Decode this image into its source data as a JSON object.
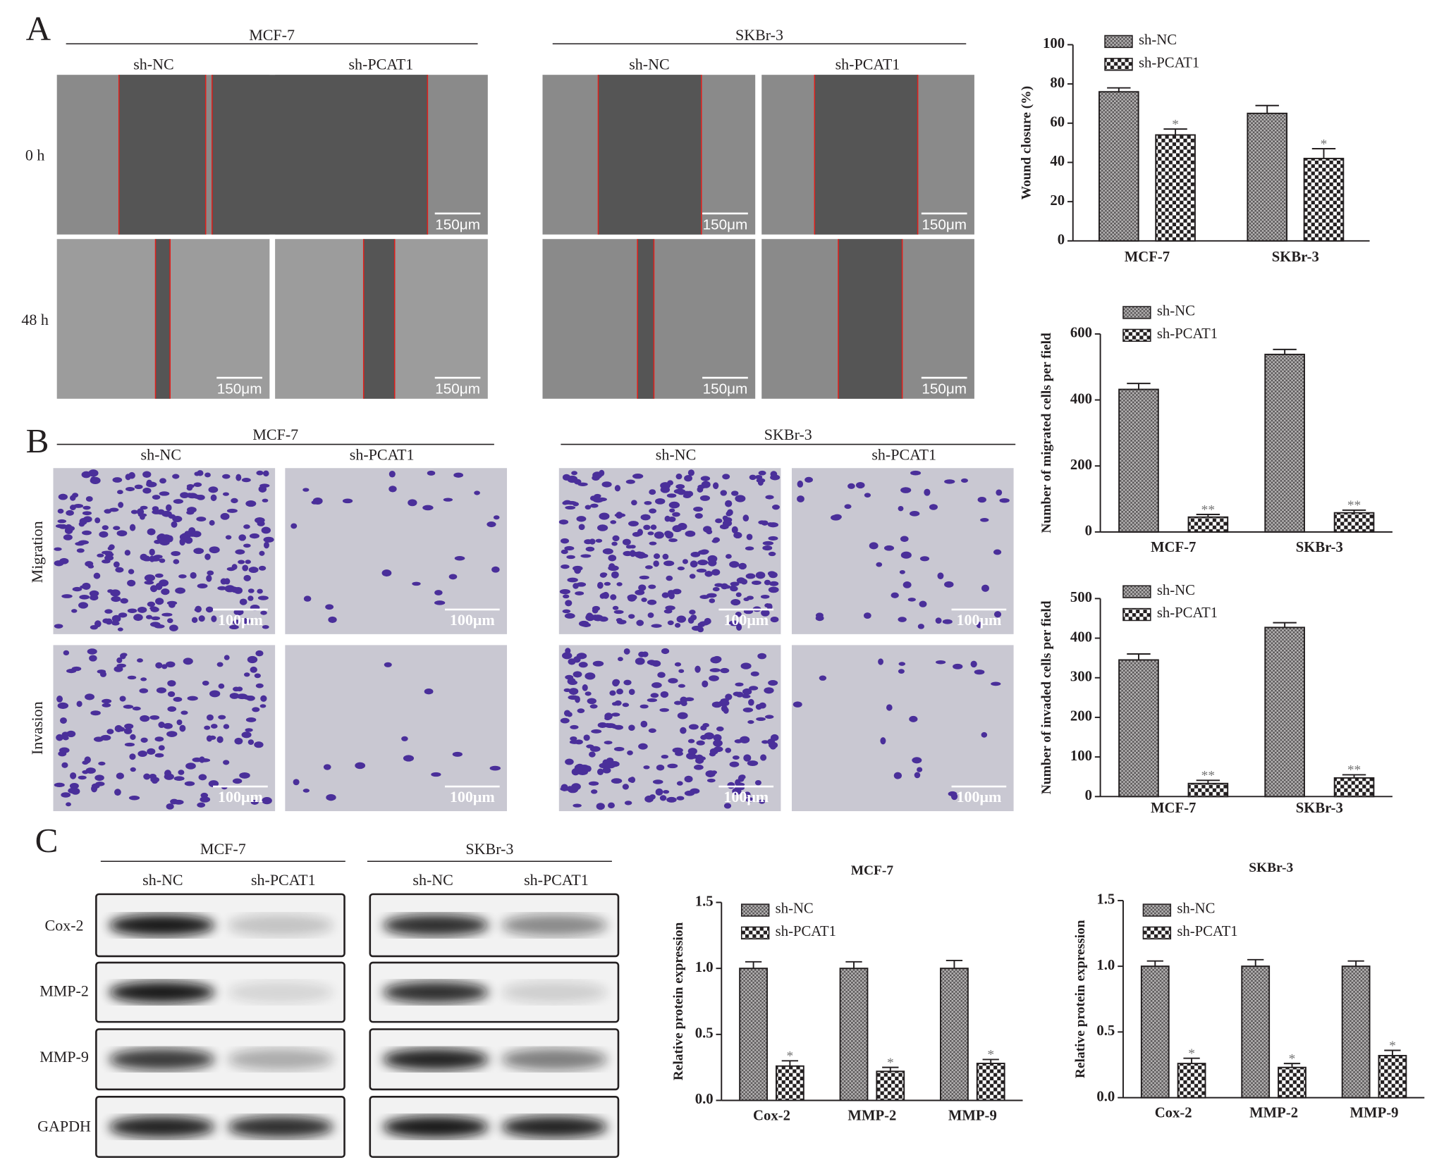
{
  "panel_labels": [
    "A",
    "B",
    "C"
  ],
  "panel_a": {
    "groups": [
      {
        "title": "MCF-7",
        "columns": [
          "sh-NC",
          "sh-PCAT1"
        ]
      },
      {
        "title": "SKBr-3",
        "columns": [
          "sh-NC",
          "sh-PCAT1"
        ]
      }
    ],
    "rows": [
      "0 h",
      "48 h"
    ],
    "scale_bar": "150μm"
  },
  "panel_b": {
    "groups": [
      {
        "title": "MCF-7",
        "columns": [
          "sh-NC",
          "sh-PCAT1"
        ]
      },
      {
        "title": "SKBr-3",
        "columns": [
          "sh-NC",
          "sh-PCAT1"
        ]
      }
    ],
    "rows": [
      "Migration",
      "Invasion"
    ],
    "scale_bar": "100μm"
  },
  "panel_c": {
    "groups": [
      {
        "title": "MCF-7",
        "columns": [
          "sh-NC",
          "sh-PCAT1"
        ]
      },
      {
        "title": "SKBr-3",
        "columns": [
          "sh-NC",
          "sh-PCAT1"
        ]
      }
    ],
    "rows": [
      "Cox-2",
      "MMP-2",
      "MMP-9",
      "GAPDH"
    ]
  },
  "chart_data": [
    {
      "type": "bar",
      "y_label": "Wound closure (%)",
      "categories": [
        "MCF-7",
        "SKBr-3"
      ],
      "series": [
        {
          "name": "sh-NC",
          "color": "#231f20",
          "hatch": "fine",
          "values": [
            76,
            65
          ],
          "errors": [
            2,
            4
          ]
        },
        {
          "name": "sh-PCAT1",
          "color": "#231f20",
          "hatch": "coarse",
          "values": [
            54,
            42
          ],
          "errors": [
            3,
            5
          ],
          "significance": [
            "*",
            "*"
          ]
        }
      ],
      "ylim": [
        0,
        100
      ],
      "yticks": [
        0,
        20,
        40,
        60,
        80,
        100
      ]
    },
    {
      "type": "bar",
      "y_label": "Number of migrated cells per field",
      "categories": [
        "MCF-7",
        "SKBr-3"
      ],
      "series": [
        {
          "name": "sh-NC",
          "color": "#231f20",
          "hatch": "fine",
          "values": [
            432,
            538
          ],
          "errors": [
            18,
            15
          ]
        },
        {
          "name": "sh-PCAT1",
          "color": "#231f20",
          "hatch": "coarse",
          "values": [
            45,
            58
          ],
          "errors": [
            8,
            8
          ],
          "significance": [
            "**",
            "**"
          ]
        }
      ],
      "ylim": [
        0,
        600
      ],
      "yticks": [
        0,
        200,
        400,
        600
      ]
    },
    {
      "type": "bar",
      "y_label": "Number of invaded cells per field",
      "categories": [
        "MCF-7",
        "SKBr-3"
      ],
      "series": [
        {
          "name": "sh-NC",
          "color": "#231f20",
          "hatch": "fine",
          "values": [
            345,
            427
          ],
          "errors": [
            15,
            12
          ]
        },
        {
          "name": "sh-PCAT1",
          "color": "#231f20",
          "hatch": "coarse",
          "values": [
            33,
            47
          ],
          "errors": [
            8,
            8
          ],
          "significance": [
            "**",
            "**"
          ]
        }
      ],
      "ylim": [
        0,
        500
      ],
      "yticks": [
        0,
        100,
        200,
        300,
        400,
        500
      ]
    },
    {
      "type": "bar",
      "title": "MCF-7",
      "y_label": "Relative protein expression",
      "categories": [
        "Cox-2",
        "MMP-2",
        "MMP-9"
      ],
      "series": [
        {
          "name": "sh-NC",
          "color": "#231f20",
          "hatch": "fine",
          "values": [
            1,
            1,
            1
          ],
          "errors": [
            0.05,
            0.05,
            0.06
          ]
        },
        {
          "name": "sh-PCAT1",
          "color": "#231f20",
          "hatch": "coarse",
          "values": [
            0.26,
            0.22,
            0.28
          ],
          "errors": [
            0.04,
            0.03,
            0.03
          ],
          "significance": [
            "*",
            "*",
            "*"
          ]
        }
      ],
      "ylim": [
        0,
        1.5
      ],
      "yticks": [
        {
          "value": 0,
          "label": "0.0"
        },
        0.5,
        {
          "value": 1,
          "label": "1.0"
        },
        1.5
      ]
    },
    {
      "type": "bar",
      "title": "SKBr-3",
      "y_label": "Relative protein expression",
      "categories": [
        "Cox-2",
        "MMP-2",
        "MMP-9"
      ],
      "series": [
        {
          "name": "sh-NC",
          "color": "#231f20",
          "hatch": "fine",
          "values": [
            1,
            1,
            1
          ],
          "errors": [
            0.04,
            0.05,
            0.04
          ]
        },
        {
          "name": "sh-PCAT1",
          "color": "#231f20",
          "hatch": "coarse",
          "values": [
            0.26,
            0.23,
            0.32
          ],
          "errors": [
            0.04,
            0.03,
            0.04
          ],
          "significance": [
            "*",
            "*",
            "*"
          ]
        }
      ],
      "ylim": [
        0,
        1.5
      ],
      "yticks": [
        {
          "value": 0,
          "label": "0.0"
        },
        0.5,
        {
          "value": 1,
          "label": "1.0"
        },
        1.5
      ]
    }
  ]
}
